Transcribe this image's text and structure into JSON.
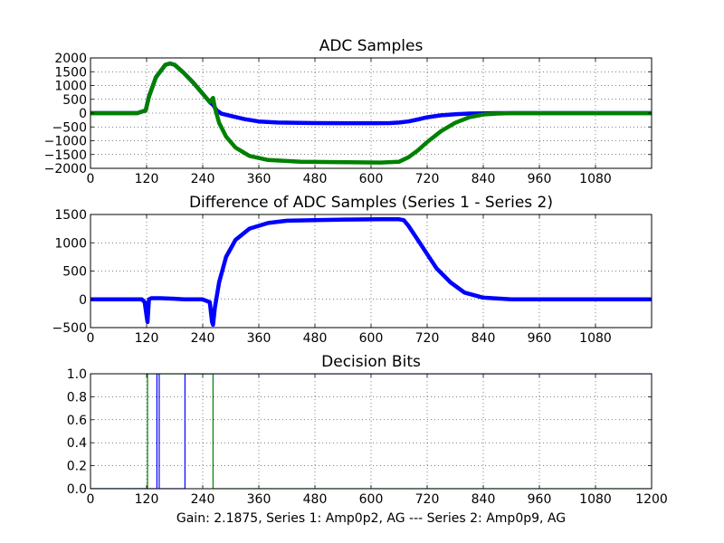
{
  "chart_data": [
    {
      "type": "scatter",
      "title": "ADC Samples",
      "xlim": [
        0,
        1200
      ],
      "ylim": [
        -2000,
        2000
      ],
      "grid": true,
      "x_ticks": [
        "0",
        "120",
        "240",
        "360",
        "480",
        "600",
        "720",
        "840",
        "960",
        "1080"
      ],
      "x_tick_values": [
        0,
        120,
        240,
        360,
        480,
        600,
        720,
        840,
        960,
        1080
      ],
      "y_ticks": [
        "2000",
        "1500",
        "1000",
        "500",
        "0",
        "−500",
        "−1000",
        "−1500",
        "−2000"
      ],
      "y_tick_values": [
        2000,
        1500,
        1000,
        500,
        0,
        -500,
        -1000,
        -1500,
        -2000
      ],
      "series": [
        {
          "color": "#0000ff",
          "x": [
            0,
            100,
            118,
            125,
            140,
            160,
            170,
            180,
            200,
            220,
            240,
            255,
            262,
            270,
            280,
            300,
            330,
            360,
            400,
            480,
            550,
            600,
            640,
            660,
            680,
            700,
            720,
            750,
            780,
            810,
            840,
            870,
            900,
            960,
            1080,
            1200
          ],
          "y": [
            0,
            0,
            100,
            600,
            1300,
            1750,
            1800,
            1750,
            1450,
            1100,
            700,
            400,
            300,
            100,
            -20,
            -100,
            -220,
            -300,
            -340,
            -360,
            -365,
            -365,
            -360,
            -340,
            -300,
            -230,
            -150,
            -80,
            -40,
            -15,
            -5,
            0,
            0,
            0,
            0,
            0
          ]
        },
        {
          "color": "#008000",
          "x": [
            0,
            100,
            118,
            125,
            140,
            160,
            170,
            180,
            200,
            220,
            240,
            255,
            262,
            266,
            275,
            290,
            310,
            340,
            380,
            450,
            550,
            620,
            660,
            680,
            700,
            720,
            750,
            780,
            810,
            840,
            870,
            900,
            960,
            1080,
            1200
          ],
          "y": [
            0,
            0,
            100,
            600,
            1300,
            1750,
            1800,
            1750,
            1450,
            1100,
            700,
            400,
            550,
            200,
            -350,
            -850,
            -1250,
            -1550,
            -1700,
            -1760,
            -1780,
            -1790,
            -1760,
            -1600,
            -1350,
            -1050,
            -650,
            -350,
            -150,
            -50,
            -15,
            0,
            0,
            0,
            0
          ]
        }
      ]
    },
    {
      "type": "scatter",
      "title": "Difference of ADC Samples (Series 1 - Series 2)",
      "xlim": [
        0,
        1200
      ],
      "ylim": [
        -500,
        1500
      ],
      "grid": true,
      "x_ticks": [
        "0",
        "120",
        "240",
        "360",
        "480",
        "600",
        "720",
        "840",
        "960",
        "1080"
      ],
      "x_tick_values": [
        0,
        120,
        240,
        360,
        480,
        600,
        720,
        840,
        960,
        1080
      ],
      "y_ticks": [
        "1500",
        "1000",
        "500",
        "0",
        "−500"
      ],
      "y_tick_values": [
        1500,
        1000,
        500,
        0,
        -500
      ],
      "series": [
        {
          "color": "#0000ff",
          "x": [
            0,
            110,
            116,
            120,
            122,
            125,
            130,
            150,
            180,
            200,
            240,
            255,
            260,
            262,
            266,
            275,
            290,
            310,
            340,
            380,
            420,
            480,
            550,
            620,
            660,
            670,
            680,
            700,
            720,
            740,
            770,
            800,
            840,
            900,
            960,
            1080,
            1200
          ],
          "y": [
            0,
            0,
            -50,
            -300,
            -400,
            0,
            20,
            20,
            10,
            0,
            0,
            -50,
            -400,
            -450,
            -150,
            300,
            750,
            1050,
            1250,
            1350,
            1390,
            1400,
            1410,
            1415,
            1415,
            1400,
            1300,
            1050,
            800,
            550,
            300,
            120,
            30,
            0,
            0,
            0,
            0
          ]
        }
      ]
    },
    {
      "type": "line",
      "title": "Decision Bits",
      "xlabel": "Gain: 2.1875, Series 1: Amp0p2, AG --- Series 2: Amp0p9, AG",
      "xlim": [
        0,
        1200
      ],
      "ylim": [
        0,
        1
      ],
      "grid": true,
      "x_ticks": [
        "0",
        "120",
        "240",
        "360",
        "480",
        "600",
        "720",
        "840",
        "960",
        "1080",
        "1200"
      ],
      "x_tick_values": [
        0,
        120,
        240,
        360,
        480,
        600,
        720,
        840,
        960,
        1080,
        1200
      ],
      "y_ticks": [
        "1.0",
        "0.8",
        "0.6",
        "0.4",
        "0.2",
        "0.0"
      ],
      "y_tick_values": [
        1.0,
        0.8,
        0.6,
        0.4,
        0.2,
        0.0
      ],
      "series": [
        {
          "color": "#0000ff",
          "x": [
            0,
            142,
            142,
            147,
            147,
            202,
            202,
            1200
          ],
          "y": [
            0,
            0,
            1,
            1,
            0,
            0,
            1,
            1
          ]
        },
        {
          "color": "#008000",
          "x": [
            0,
            122,
            122,
            262,
            262,
            1200
          ],
          "y": [
            0,
            0,
            1,
            1,
            0,
            0
          ]
        }
      ]
    }
  ]
}
